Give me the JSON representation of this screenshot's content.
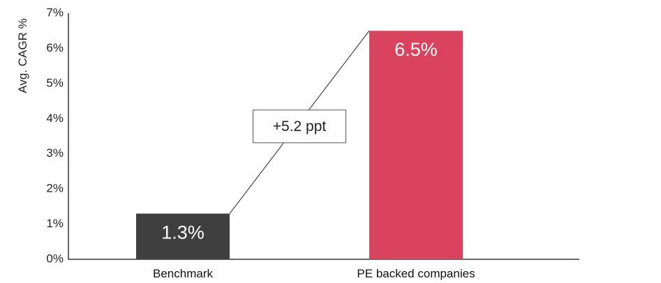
{
  "chart_data": {
    "type": "bar",
    "categories": [
      "Benchmark",
      "PE backed companies"
    ],
    "values": [
      1.3,
      6.5
    ],
    "value_labels": [
      "1.3%",
      "6.5%"
    ],
    "bar_colors": [
      "#3f3f3f",
      "#d9435e"
    ],
    "title": "",
    "xlabel": "",
    "ylabel": "Avg. CAGR %",
    "ylim": [
      0,
      7
    ],
    "yticks": [
      0,
      1,
      2,
      3,
      4,
      5,
      6,
      7
    ],
    "ytick_labels": [
      "0%",
      "1%",
      "2%",
      "3%",
      "4%",
      "5%",
      "6%",
      "7%"
    ],
    "grid": false,
    "legend": "none",
    "annotation": {
      "text": "+5.2 ppt",
      "from_category": "Benchmark",
      "to_category": "PE backed companies"
    }
  }
}
